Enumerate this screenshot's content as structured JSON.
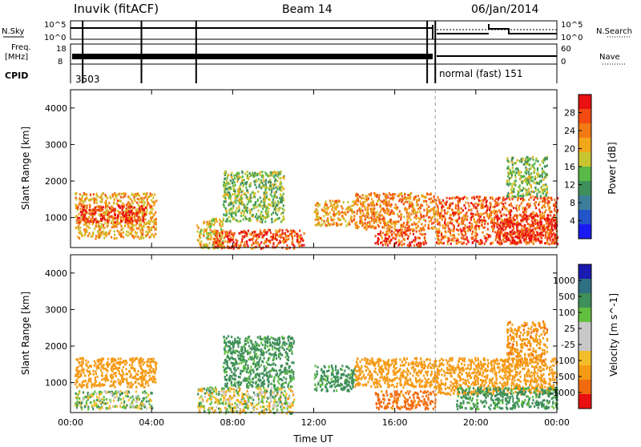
{
  "header": {
    "station": "Inuvik (fitACF)",
    "beam": "Beam 14",
    "date": "06/Jan/2014"
  },
  "strip": {
    "nsky_label": "N.Sky",
    "nsearch_label": "N.Search",
    "freq_label_1": "Freq.",
    "freq_label_2": "[MHz]",
    "nave_label": "Nave",
    "cpid_label": "CPID",
    "noise_ticks": [
      "10^5",
      "10^0"
    ],
    "freq_ticks": [
      "18",
      "8"
    ],
    "nave_ticks": [
      "60",
      "0"
    ],
    "cpid_left": "3503",
    "cpid_right": "normal (fast) 151",
    "mode_change_hour": 18.0
  },
  "chart_data": [
    {
      "type": "heatmap",
      "name": "power",
      "ylabel": "Slant Range [km]",
      "xlim": [
        0,
        24
      ],
      "ylim": [
        180,
        4500
      ],
      "yticks": [
        1000,
        2000,
        3000,
        4000
      ],
      "colorbar_label": "Power [dB]",
      "colorbar_ticks": [
        "28",
        "24",
        "20",
        "16",
        "12",
        "8",
        "4"
      ],
      "colorbar_range": [
        0,
        30
      ],
      "regions": [
        {
          "x": [
            0.2,
            4.2
          ],
          "y": [
            450,
            1700
          ],
          "value": 20
        },
        {
          "x": [
            0.3,
            3.7
          ],
          "y": [
            900,
            1350
          ],
          "value": 27
        },
        {
          "x": [
            6.2,
            7.5
          ],
          "y": [
            180,
            1000
          ],
          "value": 18
        },
        {
          "x": [
            7.0,
            11.5
          ],
          "y": [
            180,
            700
          ],
          "value": 25
        },
        {
          "x": [
            7.5,
            10.5
          ],
          "y": [
            900,
            2300
          ],
          "value": 14
        },
        {
          "x": [
            12.0,
            14.0
          ],
          "y": [
            800,
            1500
          ],
          "value": 20
        },
        {
          "x": [
            14.0,
            18.0
          ],
          "y": [
            700,
            1700
          ],
          "value": 22
        },
        {
          "x": [
            15.0,
            17.5
          ],
          "y": [
            250,
            700
          ],
          "value": 25
        },
        {
          "x": [
            18.0,
            24.0
          ],
          "y": [
            300,
            1600
          ],
          "value": 24
        },
        {
          "x": [
            21.0,
            24.0
          ],
          "y": [
            300,
            1100
          ],
          "value": 28
        },
        {
          "x": [
            21.5,
            23.5
          ],
          "y": [
            1600,
            2700
          ],
          "value": 14
        }
      ]
    },
    {
      "type": "heatmap",
      "name": "velocity",
      "xlabel": "Time UT",
      "ylabel": "Slant Range [km]",
      "xlim": [
        0,
        24
      ],
      "ylim": [
        180,
        4500
      ],
      "xticks": [
        "00:00",
        "04:00",
        "08:00",
        "12:00",
        "16:00",
        "20:00",
        "00:00"
      ],
      "yticks": [
        1000,
        2000,
        3000,
        4000
      ],
      "colorbar_label": "Velocity [m s^-1]",
      "colorbar_ticks": [
        "1000",
        "500",
        "100",
        "25",
        "-25",
        "-100",
        "-500",
        "-1000"
      ],
      "regions": [
        {
          "x": [
            0.2,
            4.2
          ],
          "y": [
            900,
            1700
          ],
          "value": -300
        },
        {
          "x": [
            0.2,
            4.0
          ],
          "y": [
            300,
            800
          ],
          "value": 50
        },
        {
          "x": [
            6.2,
            11.0
          ],
          "y": [
            180,
            900
          ],
          "value": 0
        },
        {
          "x": [
            7.5,
            11.0
          ],
          "y": [
            900,
            2300
          ],
          "value": 200
        },
        {
          "x": [
            12.0,
            14.0
          ],
          "y": [
            800,
            1500
          ],
          "value": 200
        },
        {
          "x": [
            14.0,
            18.0
          ],
          "y": [
            900,
            1700
          ],
          "value": -300
        },
        {
          "x": [
            15.0,
            18.0
          ],
          "y": [
            300,
            800
          ],
          "value": -600
        },
        {
          "x": [
            18.0,
            24.0
          ],
          "y": [
            700,
            1700
          ],
          "value": -300
        },
        {
          "x": [
            19.0,
            24.0
          ],
          "y": [
            300,
            900
          ],
          "value": 200
        },
        {
          "x": [
            21.5,
            23.5
          ],
          "y": [
            1600,
            2700
          ],
          "value": -400
        }
      ]
    }
  ],
  "colors": {
    "power_scale": [
      "#1a1af0",
      "#2255c8",
      "#3d7f9a",
      "#3f8f5a",
      "#58b848",
      "#c9c431",
      "#f2a61a",
      "#f27a14",
      "#f24a10",
      "#e81010"
    ],
    "velocity_scale": [
      "#e81010",
      "#f26a10",
      "#f59a14",
      "#f2bd2a",
      "#c8c8c8",
      "#c8c8c8",
      "#62c040",
      "#3f8f5a",
      "#2f6f82",
      "#1a1ab0"
    ]
  }
}
